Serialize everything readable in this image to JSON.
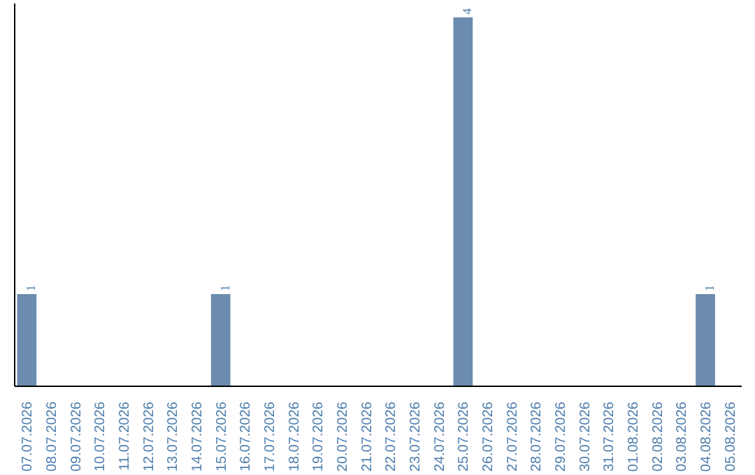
{
  "chart_data": {
    "type": "bar",
    "categories": [
      "07.07.2026",
      "08.07.2026",
      "09.07.2026",
      "10.07.2026",
      "11.07.2026",
      "12.07.2026",
      "13.07.2026",
      "14.07.2026",
      "15.07.2026",
      "16.07.2026",
      "17.07.2026",
      "18.07.2026",
      "19.07.2026",
      "20.07.2026",
      "21.07.2026",
      "22.07.2026",
      "23.07.2026",
      "24.07.2026",
      "25.07.2026",
      "26.07.2026",
      "27.07.2026",
      "28.07.2026",
      "29.07.2026",
      "30.07.2026",
      "31.07.2026",
      "01.08.2026",
      "02.08.2026",
      "03.08.2026",
      "04.08.2026",
      "05.08.2026"
    ],
    "values": [
      1,
      0,
      0,
      0,
      0,
      0,
      0,
      0,
      1,
      0,
      0,
      0,
      0,
      0,
      0,
      0,
      0,
      0,
      4,
      0,
      0,
      0,
      0,
      0,
      0,
      0,
      0,
      0,
      1,
      0
    ],
    "value_labels": [
      "1",
      null,
      null,
      null,
      null,
      null,
      null,
      null,
      "1",
      null,
      null,
      null,
      null,
      null,
      null,
      null,
      null,
      null,
      "4",
      null,
      null,
      null,
      null,
      null,
      null,
      null,
      null,
      null,
      "1",
      null
    ],
    "color": "#6b8cae",
    "ylim": [
      0,
      4.15
    ],
    "tick_labels": "x",
    "grid": false
  }
}
